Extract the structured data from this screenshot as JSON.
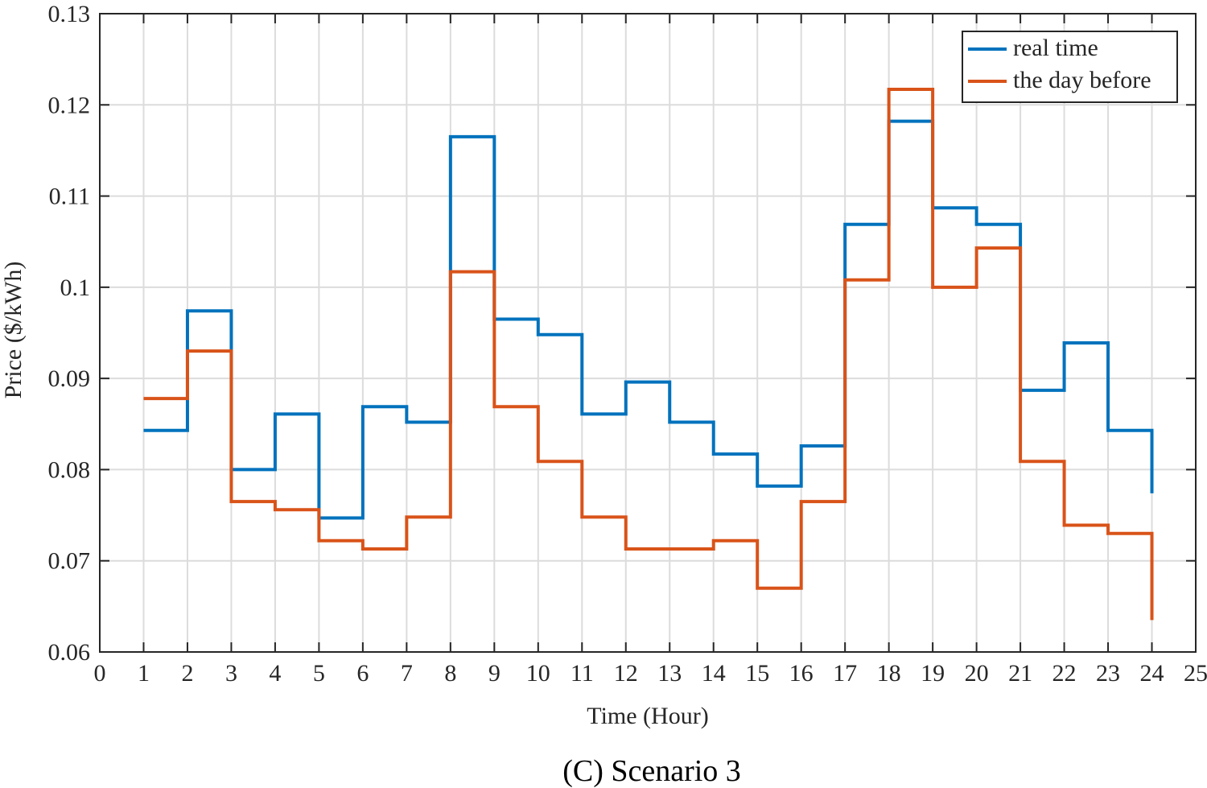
{
  "chart_data": {
    "type": "line",
    "step": true,
    "title": "",
    "caption": "(C) Scenario 3",
    "xlabel": "Time (Hour)",
    "ylabel": "Price ($/kWh)",
    "xlim": [
      0,
      25
    ],
    "ylim": [
      0.06,
      0.13
    ],
    "xticks": [
      0,
      1,
      2,
      3,
      4,
      5,
      6,
      7,
      8,
      9,
      10,
      11,
      12,
      13,
      14,
      15,
      16,
      17,
      18,
      19,
      20,
      21,
      22,
      23,
      24,
      25
    ],
    "xtick_labels": [
      "0",
      "1",
      "2",
      "3",
      "4",
      "5",
      "6",
      "7",
      "8",
      "9",
      "10",
      "11",
      "12",
      "13",
      "14",
      "15",
      "16",
      "17",
      "18",
      "19",
      "20",
      "21",
      "22",
      "23",
      "24",
      "25"
    ],
    "yticks": [
      0.06,
      0.07,
      0.08,
      0.09,
      0.1,
      0.11,
      0.12,
      0.13
    ],
    "ytick_labels": [
      "0.06",
      "0.07",
      "0.08",
      "0.09",
      "0.1",
      "0.11",
      "0.12",
      "0.13"
    ],
    "grid": true,
    "legend_position": "top-right",
    "x": [
      1,
      2,
      3,
      4,
      5,
      6,
      7,
      8,
      9,
      10,
      11,
      12,
      13,
      14,
      15,
      16,
      17,
      18,
      19,
      20,
      21,
      22,
      23,
      24
    ],
    "series": [
      {
        "name": "real time",
        "color": "#0072BD",
        "values": [
          0.0843,
          0.0974,
          0.08,
          0.0861,
          0.0747,
          0.0869,
          0.0852,
          0.1165,
          0.0965,
          0.0948,
          0.0861,
          0.0896,
          0.0852,
          0.0817,
          0.0782,
          0.0826,
          0.1069,
          0.1182,
          0.1087,
          0.1069,
          0.0887,
          0.0939,
          0.0843,
          0.0774
        ]
      },
      {
        "name": "the day before",
        "color": "#D95319",
        "values": [
          0.0878,
          0.093,
          0.0765,
          0.0756,
          0.0722,
          0.0713,
          0.0748,
          0.1017,
          0.0869,
          0.0809,
          0.0748,
          0.0713,
          0.0713,
          0.0722,
          0.067,
          0.0765,
          0.1008,
          0.1217,
          0.1,
          0.1043,
          0.0809,
          0.0739,
          0.073,
          0.0635
        ]
      }
    ]
  }
}
